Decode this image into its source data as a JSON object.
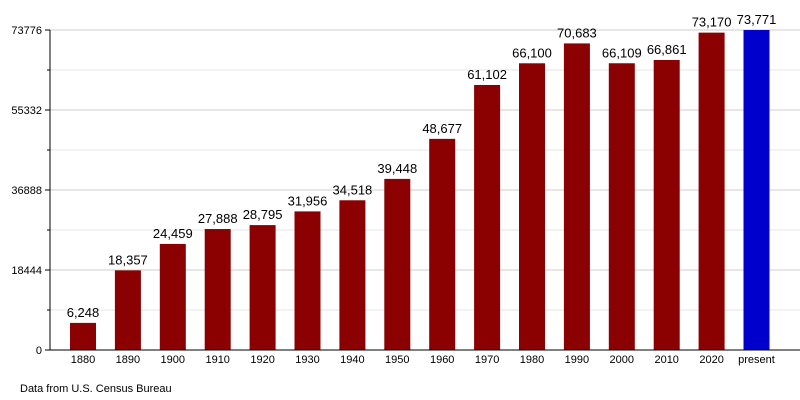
{
  "chart_data": {
    "type": "bar",
    "categories": [
      "1880",
      "1890",
      "1900",
      "1910",
      "1920",
      "1930",
      "1940",
      "1950",
      "1960",
      "1970",
      "1980",
      "1990",
      "2000",
      "2010",
      "2020",
      "present"
    ],
    "values": [
      6248,
      18357,
      24459,
      27888,
      28795,
      31956,
      34518,
      39448,
      48677,
      61102,
      66100,
      70683,
      66109,
      66861,
      73170,
      73771
    ],
    "data_labels": [
      "6,248",
      "18,357",
      "24,459",
      "27,888",
      "28,795",
      "31,956",
      "34,518",
      "39,448",
      "48,677",
      "61,102",
      "66,100",
      "70,683",
      "66,109",
      "66,861",
      "73,170",
      "73,771"
    ],
    "yticks": [
      0,
      18444,
      36888,
      55332,
      73776
    ],
    "ylim": [
      0,
      73776
    ],
    "grid": true,
    "colors": {
      "bar": "#8b0000",
      "highlight": "#0000cd",
      "grid": "#cccccc",
      "minor_grid": "#e6e6e6"
    },
    "highlight_category": "present",
    "source_note": "Data from U.S. Census Bureau"
  }
}
